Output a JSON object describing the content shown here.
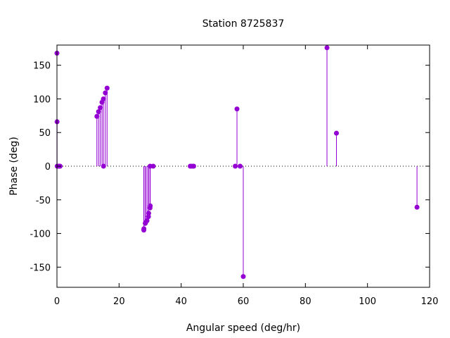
{
  "chart_data": {
    "type": "scatter",
    "style": "impulses-with-points",
    "title": "Station 8725837",
    "xlabel": "Angular speed (deg/hr)",
    "ylabel": "Phase (deg)",
    "xlim": [
      0,
      120
    ],
    "ylim": [
      -180,
      180
    ],
    "xticks": [
      0,
      20,
      40,
      60,
      80,
      100,
      120
    ],
    "yticks": [
      -150,
      -100,
      -50,
      0,
      50,
      100,
      150
    ],
    "grid": false,
    "zero_line": true,
    "series": [
      {
        "color": "#9400d3",
        "points": [
          {
            "x": 0.0,
            "y": 168
          },
          {
            "x": 0.04,
            "y": 66
          },
          {
            "x": 0.08,
            "y": 0
          },
          {
            "x": 0.5,
            "y": 0
          },
          {
            "x": 0.8,
            "y": 0
          },
          {
            "x": 1.0,
            "y": 0
          },
          {
            "x": 12.85,
            "y": 74
          },
          {
            "x": 13.4,
            "y": 81
          },
          {
            "x": 13.94,
            "y": 87
          },
          {
            "x": 14.5,
            "y": 95
          },
          {
            "x": 14.96,
            "y": 100
          },
          {
            "x": 15.0,
            "y": 0
          },
          {
            "x": 15.58,
            "y": 109
          },
          {
            "x": 16.14,
            "y": 116
          },
          {
            "x": 27.97,
            "y": -95
          },
          {
            "x": 28.0,
            "y": -93
          },
          {
            "x": 28.44,
            "y": -85
          },
          {
            "x": 28.51,
            "y": -84
          },
          {
            "x": 28.99,
            "y": -81
          },
          {
            "x": 29.46,
            "y": -75
          },
          {
            "x": 29.53,
            "y": -70
          },
          {
            "x": 29.96,
            "y": -62
          },
          {
            "x": 30.0,
            "y": 0
          },
          {
            "x": 30.04,
            "y": -59
          },
          {
            "x": 31.0,
            "y": 0
          },
          {
            "x": 42.93,
            "y": 0
          },
          {
            "x": 43.48,
            "y": 0
          },
          {
            "x": 44.03,
            "y": 0
          },
          {
            "x": 57.42,
            "y": 0
          },
          {
            "x": 57.97,
            "y": 85
          },
          {
            "x": 58.98,
            "y": 0
          },
          {
            "x": 60.0,
            "y": -164
          },
          {
            "x": 86.95,
            "y": 176
          },
          {
            "x": 90.0,
            "y": 49
          },
          {
            "x": 115.94,
            "y": -61
          }
        ]
      }
    ]
  }
}
